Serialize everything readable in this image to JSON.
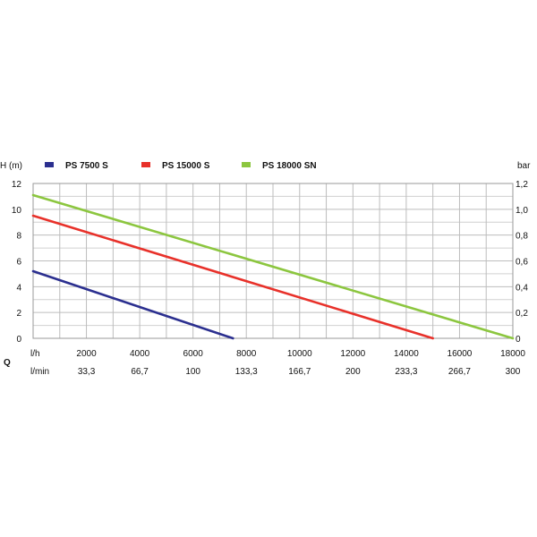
{
  "chart_data": {
    "type": "line",
    "y_axis_left": {
      "label": "H (m)",
      "min": 0,
      "max": 12,
      "ticks": [
        "0",
        "2",
        "4",
        "6",
        "8",
        "10",
        "12"
      ]
    },
    "y_axis_right": {
      "label": "bar",
      "ticks": [
        "0",
        "0,2",
        "0,4",
        "0,6",
        "0,8",
        "1,0",
        "1,2"
      ]
    },
    "x_axis_label": "Q",
    "x_axis_lh": {
      "unit": "l/h",
      "min": 0,
      "max": 18000,
      "ticks": [
        2000,
        4000,
        6000,
        8000,
        10000,
        12000,
        14000,
        16000,
        18000
      ],
      "tick_labels": [
        "2000",
        "4000",
        "6000",
        "8000",
        "10000",
        "12000",
        "14000",
        "16000",
        "18000"
      ]
    },
    "x_axis_lmin": {
      "unit": "l/min",
      "values": [
        2000,
        4000,
        6000,
        8000,
        10000,
        12000,
        14000,
        16000,
        18000
      ],
      "tick_labels": [
        "33,3",
        "66,7",
        "100",
        "133,3",
        "166,7",
        "200",
        "233,3",
        "266,7",
        "300"
      ]
    },
    "grid": true,
    "legend_position": "top",
    "series": [
      {
        "name": "PS 7500 S",
        "color": "#2b2f8f",
        "points": [
          [
            0,
            5.2
          ],
          [
            7500,
            0
          ]
        ]
      },
      {
        "name": "PS 15000 S",
        "color": "#e8312a",
        "points": [
          [
            0,
            9.5
          ],
          [
            15000,
            0
          ]
        ]
      },
      {
        "name": "PS 18000 SN",
        "color": "#8cc63f",
        "points": [
          [
            0,
            11.1
          ],
          [
            18000,
            0
          ]
        ]
      }
    ]
  }
}
